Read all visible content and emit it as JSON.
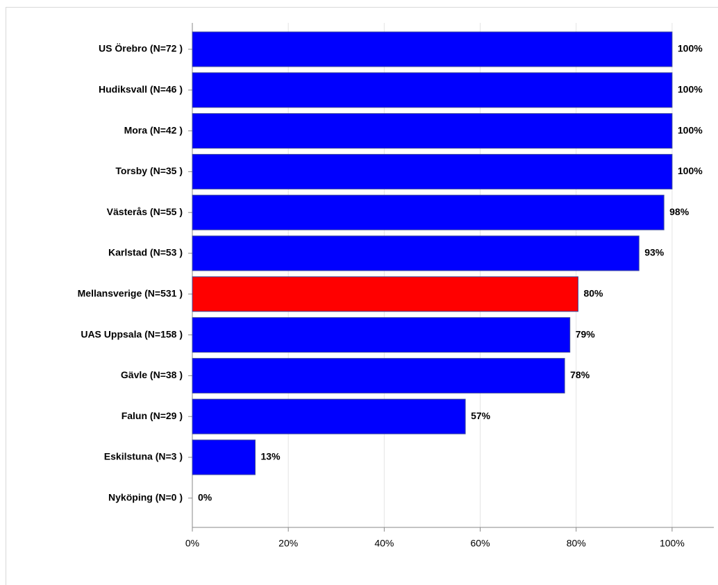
{
  "chart_data": {
    "type": "barh",
    "categories": [
      "US Örebro (N=72 )",
      "Hudiksvall (N=46 )",
      "Mora (N=42 )",
      "Torsby (N=35 )",
      "Västerås (N=55 )",
      "Karlstad (N=53 )",
      "Mellansverige (N=531 )",
      "UAS Uppsala (N=158 )",
      "Gävle (N=38 )",
      "Falun (N=29 )",
      "Eskilstuna (N=3 )",
      "Nyköping (N=0 )"
    ],
    "values": [
      100,
      100,
      100,
      100,
      98.3,
      93.1,
      80.4,
      78.7,
      77.6,
      56.9,
      13.1,
      0
    ],
    "value_labels": [
      "100%",
      "100%",
      "100%",
      "100%",
      "98%",
      "93%",
      "80%",
      "79%",
      "78%",
      "57%",
      "13%",
      "0%"
    ],
    "colors": [
      "#0000ff",
      "#0000ff",
      "#0000ff",
      "#0000ff",
      "#0000ff",
      "#0000ff",
      "#ff0000",
      "#0000ff",
      "#0000ff",
      "#0000ff",
      "#0000ff",
      "#0000ff"
    ],
    "xlim": [
      0,
      108.7
    ],
    "xticks": [
      {
        "value": 0,
        "label": "0%"
      },
      {
        "value": 20,
        "label": "20%"
      },
      {
        "value": 40,
        "label": "40%"
      },
      {
        "value": 60,
        "label": "60%"
      },
      {
        "value": 80,
        "label": "80%"
      },
      {
        "value": 100,
        "label": "100%"
      }
    ],
    "grid": true
  }
}
